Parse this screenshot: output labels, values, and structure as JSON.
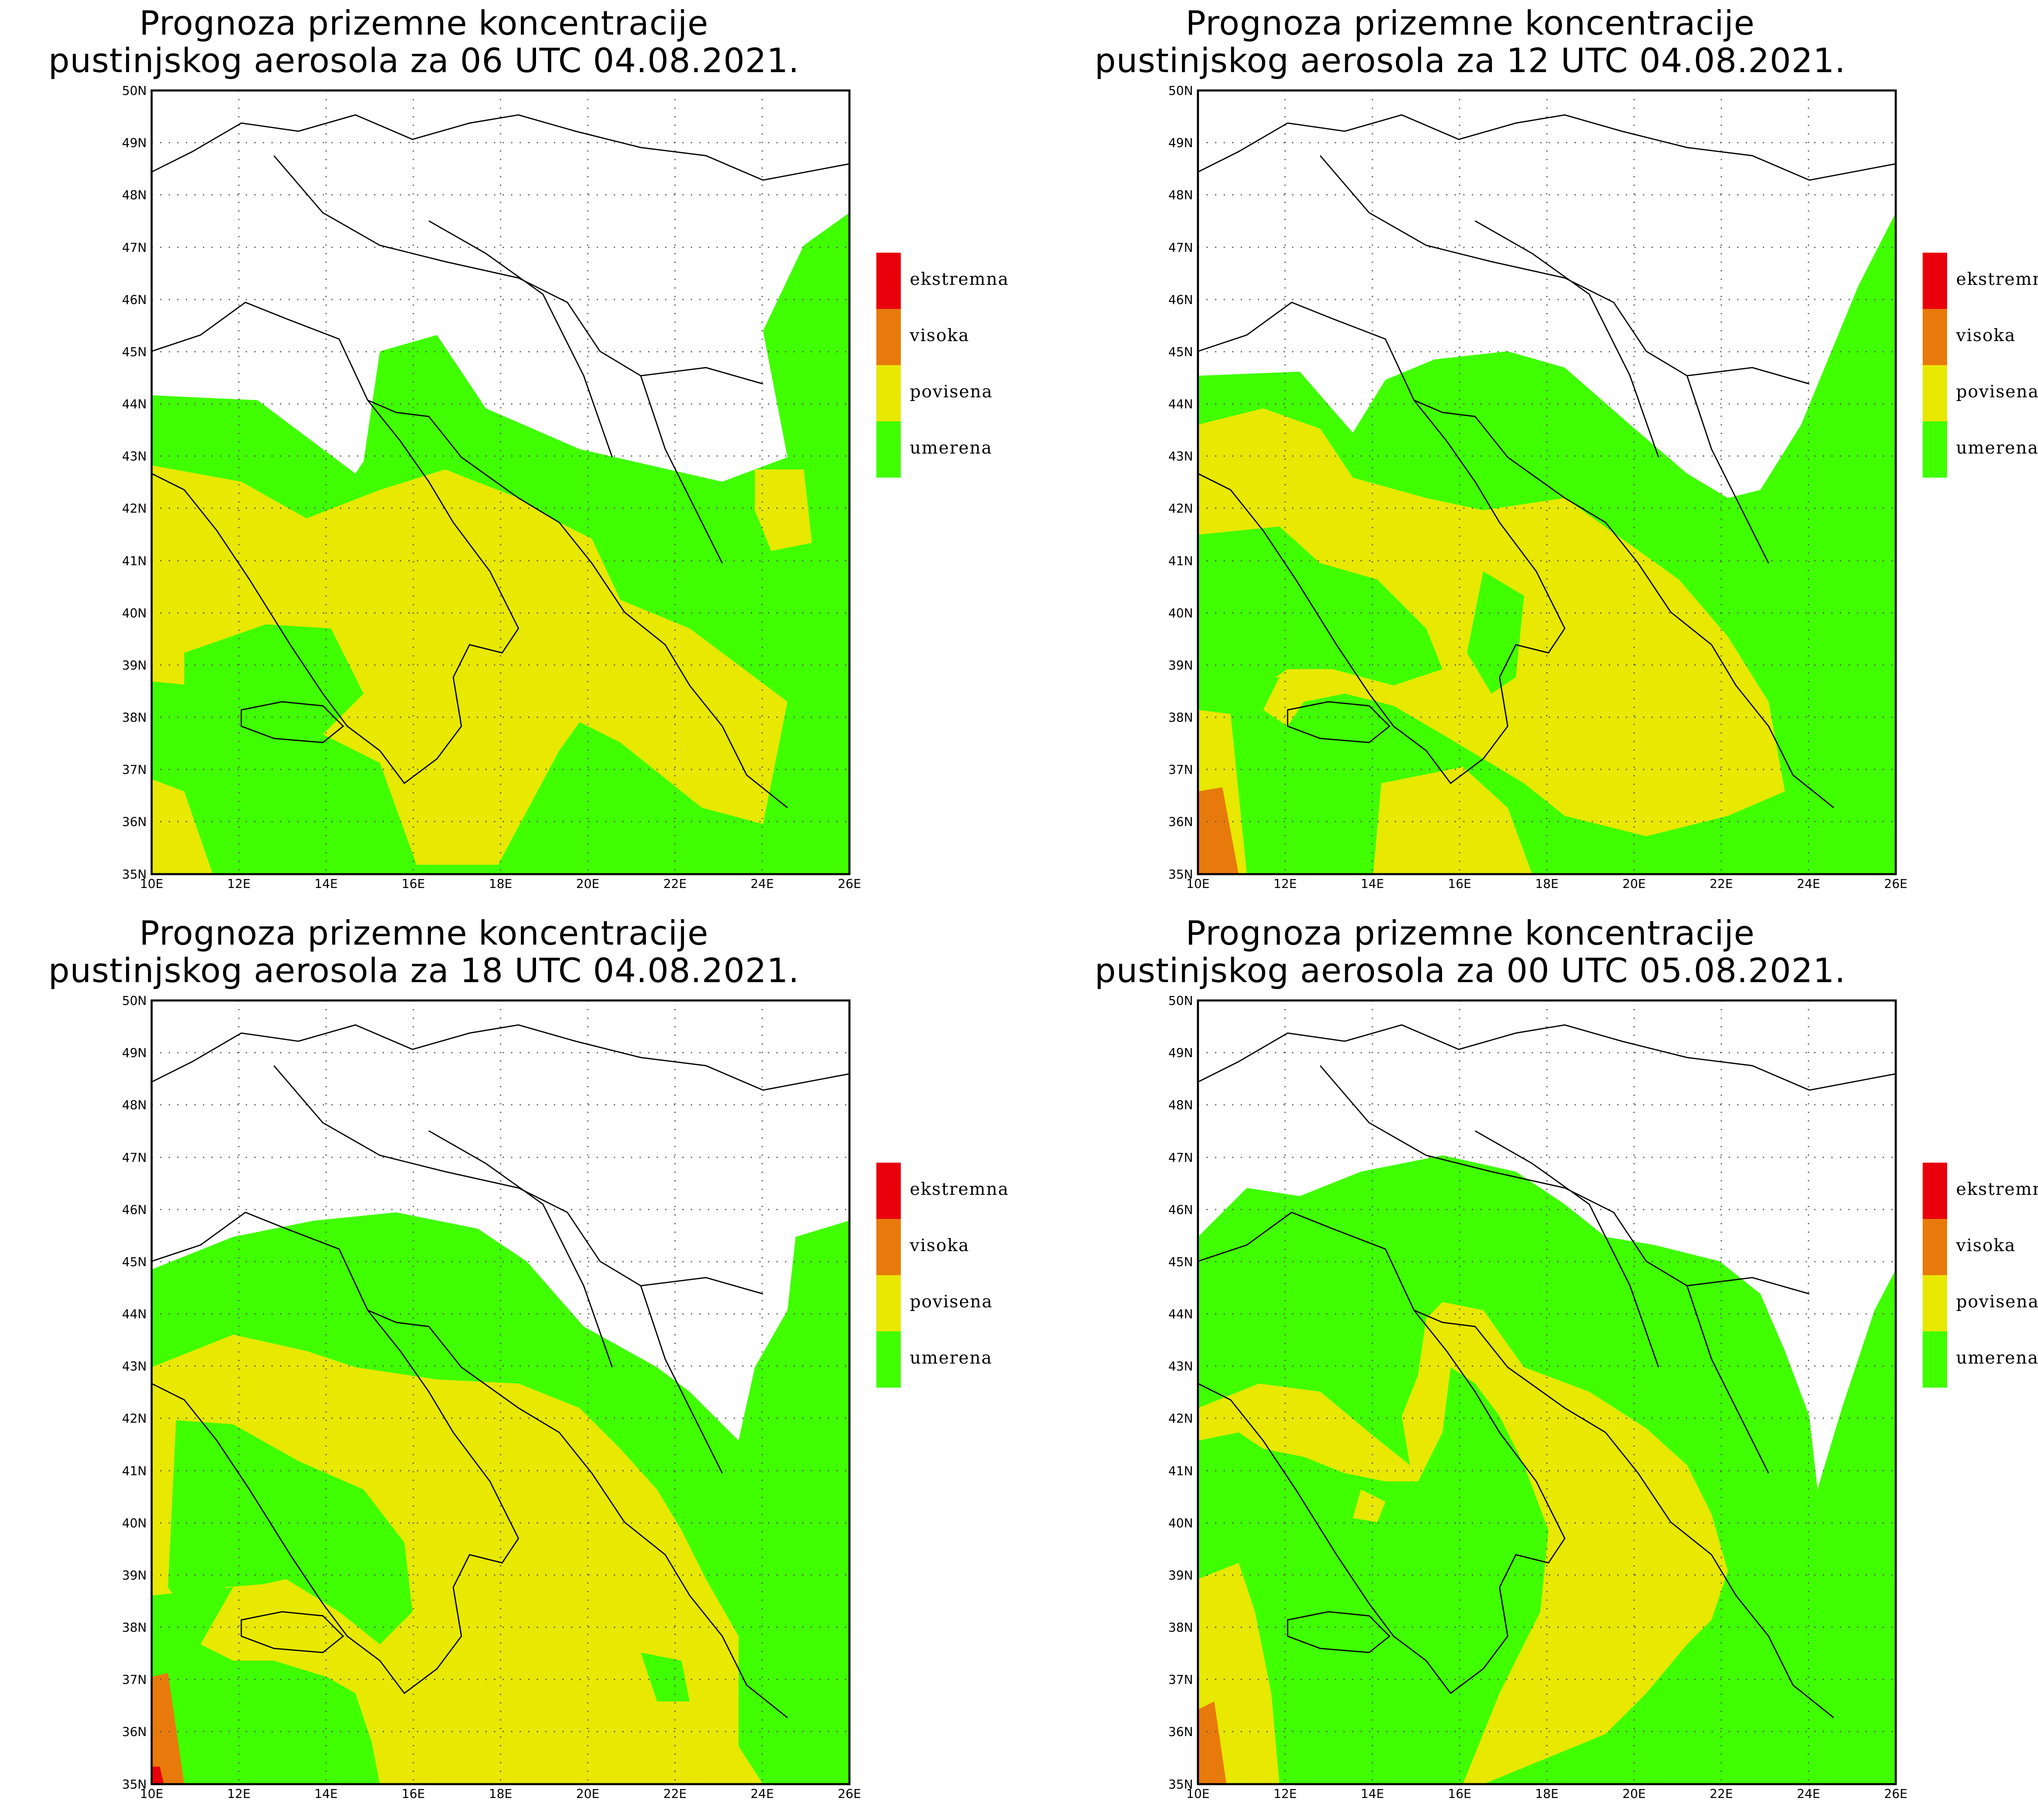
{
  "panels": [
    {
      "title_line1": "Prognoza prizemne koncentracije",
      "title_line2": "pustinjskog aerosola za 06 UTC 04.08.2021."
    },
    {
      "title_line1": "Prognoza prizemne koncentracije",
      "title_line2": "pustinjskog aerosola za 12 UTC 04.08.2021."
    },
    {
      "title_line1": "Prognoza prizemne koncentracije",
      "title_line2": "pustinjskog aerosola za 18 UTC 04.08.2021."
    },
    {
      "title_line1": "Prognoza prizemne koncentracije",
      "title_line2": "pustinjskog aerosola za 00 UTC 05.08.2021."
    }
  ],
  "axes": {
    "lat_labels": [
      "50N",
      "49N",
      "48N",
      "47N",
      "46N",
      "45N",
      "44N",
      "43N",
      "42N",
      "41N",
      "40N",
      "39N",
      "38N",
      "37N",
      "36N",
      "35N"
    ],
    "lon_labels": [
      "10E",
      "12E",
      "14E",
      "16E",
      "18E",
      "20E",
      "22E",
      "24E",
      "26E"
    ],
    "lat_range": [
      35,
      50
    ],
    "lon_range": [
      10,
      26
    ]
  },
  "legend": [
    {
      "label": "ekstremna",
      "color": "#e8000b"
    },
    {
      "label": "visoka",
      "color": "#e87a0b"
    },
    {
      "label": "povisena",
      "color": "#e8e800"
    },
    {
      "label": "umerena",
      "color": "#40ff00"
    }
  ]
}
